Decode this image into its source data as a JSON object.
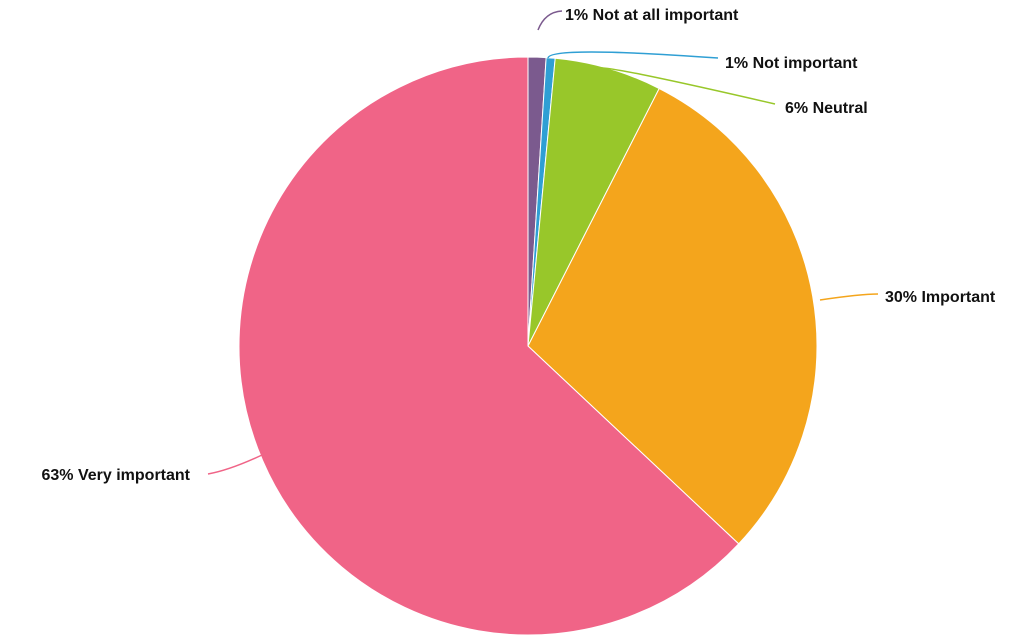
{
  "chart_data": {
    "type": "pie",
    "title": "",
    "start_angle_deg": 0,
    "direction": "clockwise",
    "slices": [
      {
        "label": "1% Not at all important",
        "percent": 1,
        "value": 1.0,
        "color": "#7b5a8e"
      },
      {
        "label": "1% Not important",
        "percent": 1,
        "value": 0.5,
        "color": "#2f9fd4"
      },
      {
        "label": "6% Neutral",
        "percent": 6,
        "value": 6.0,
        "color": "#98c72a"
      },
      {
        "label": "30% Important",
        "percent": 30,
        "value": 29.5,
        "color": "#f4a51c"
      },
      {
        "label": "63% Very important",
        "percent": 63,
        "value": 63.0,
        "color": "#f06487"
      }
    ]
  }
}
